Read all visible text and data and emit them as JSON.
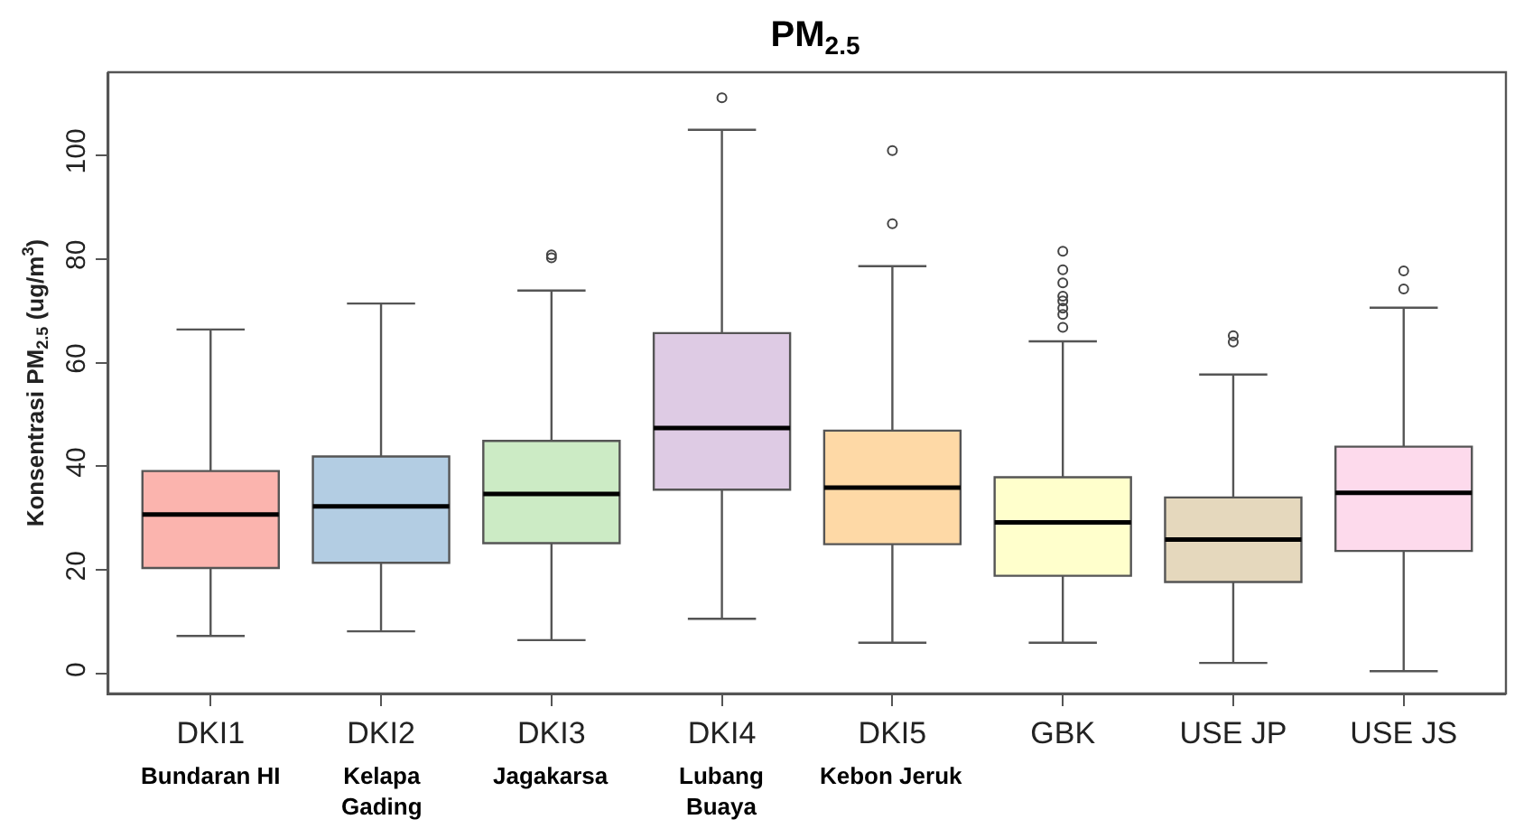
{
  "chart_data": {
    "type": "box",
    "title": "PM$_{2.5}$",
    "ylabel": "Konsentrasi PM$_{2.5}$ (ug/m$^{3}$)",
    "categories": [
      "DKI1",
      "DKI2",
      "DKI3",
      "DKI4",
      "DKI5",
      "GBK",
      "USE JP",
      "USE JS"
    ],
    "colors": [
      "#fbb4ae",
      "#b3cde3",
      "#ccebc5",
      "#decbe4",
      "#fed9a6",
      "#ffffcc",
      "#e5d8bd",
      "#fddaec"
    ],
    "boxes": [
      {
        "low": 7.3,
        "q1": 20.4,
        "median": 30.7,
        "q3": 39.1,
        "high": 66.4
      },
      {
        "low": 8.2,
        "q1": 21.4,
        "median": 32.3,
        "q3": 41.9,
        "high": 71.4
      },
      {
        "low": 6.5,
        "q1": 25.2,
        "median": 34.7,
        "q3": 44.9,
        "high": 73.9,
        "outliers": [
          80.2,
          80.8
        ]
      },
      {
        "low": 10.6,
        "q1": 35.5,
        "median": 47.4,
        "q3": 65.7,
        "high": 104.9,
        "outliers": [
          111.1
        ]
      },
      {
        "low": 6.0,
        "q1": 25.0,
        "median": 35.9,
        "q3": 46.9,
        "high": 78.6,
        "outliers": [
          86.8,
          100.9
        ]
      },
      {
        "low": 6.0,
        "q1": 18.9,
        "median": 29.2,
        "q3": 37.9,
        "high": 64.1,
        "outliers": [
          66.8,
          69.3,
          70.5,
          71.9,
          72.8,
          75.4,
          77.9,
          81.5
        ]
      },
      {
        "low": 2.1,
        "q1": 17.7,
        "median": 25.9,
        "q3": 34.0,
        "high": 57.7,
        "outliers": [
          64.0,
          65.2
        ]
      },
      {
        "low": 0.5,
        "q1": 23.7,
        "median": 34.9,
        "q3": 43.8,
        "high": 70.6,
        "outliers": [
          74.2,
          77.7
        ]
      }
    ],
    "annotations": [
      "Bundaran HI",
      "Kelapa\nGading",
      "Jagakarsa",
      "Lubang\nBuaya",
      "Kebon Jeruk"
    ],
    "ylim": [
      -3.8,
      116
    ],
    "yticks": [
      0,
      20,
      40,
      60,
      80,
      100
    ]
  }
}
